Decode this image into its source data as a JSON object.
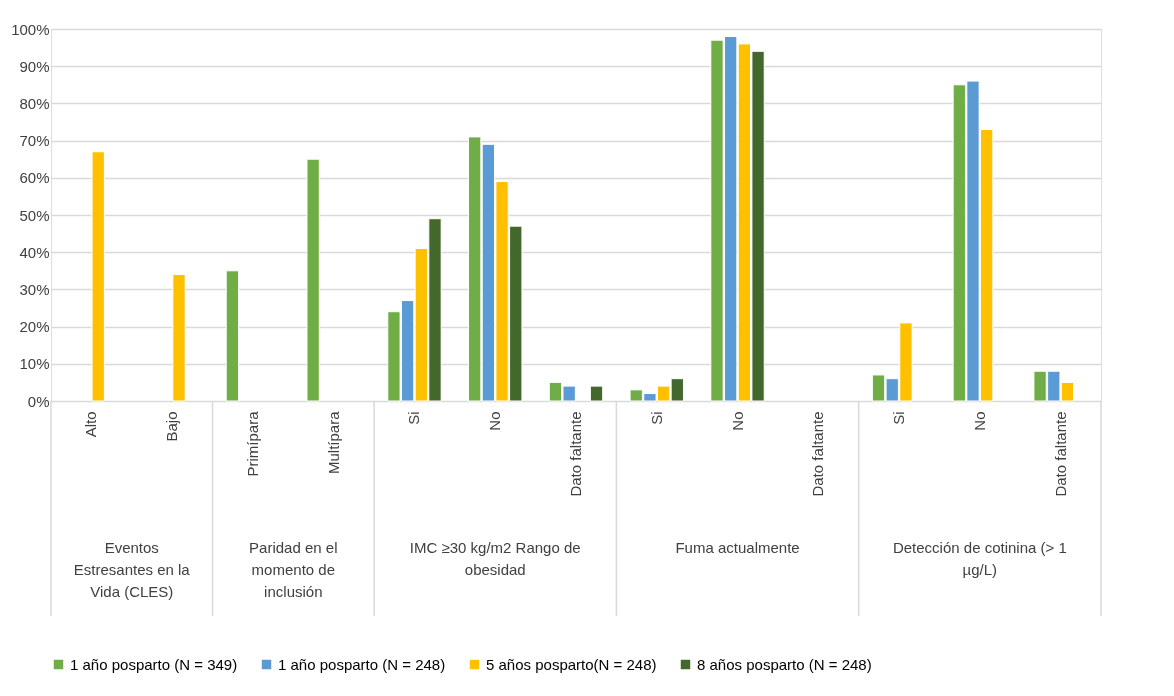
{
  "chart_data": {
    "type": "bar",
    "categories": [
      "Alto",
      "Bajo",
      "Primípara",
      "Multípara",
      "Si",
      "No",
      "Dato faltante",
      "Si",
      "No",
      "Dato faltante",
      "Si",
      "No",
      "Dato faltante"
    ],
    "series": [
      {
        "name": "1 año posparto (N = 349)",
        "color": "#70ad47",
        "values": [
          null,
          null,
          35,
          65,
          24,
          71,
          5,
          3,
          97,
          null,
          7,
          85,
          8
        ]
      },
      {
        "name": "1 año posparto (N = 248)",
        "color": "#5b9bd5",
        "values": [
          null,
          null,
          null,
          null,
          27,
          69,
          4,
          2,
          98,
          null,
          6,
          86,
          8
        ]
      },
      {
        "name": "5 años posparto(N = 248)",
        "color": "#ffc000",
        "values": [
          67,
          34,
          null,
          null,
          41,
          59,
          null,
          4,
          96,
          null,
          21,
          73,
          5
        ]
      },
      {
        "name": "8 años posparto (N = 248)",
        "color": "#43682b",
        "values": [
          null,
          null,
          null,
          null,
          49,
          47,
          4,
          6,
          94,
          null,
          null,
          null,
          null
        ]
      }
    ],
    "annotations": [
      "Eventos Estresantes en la Vida (CLES)",
      "Paridad en el momento de inclusión",
      "IMC ≥30 kg/m2 Rango de obesidad",
      "Fuma actualmente",
      "Detección de cotinina (> 1 µg/L)"
    ],
    "ylim": [
      0,
      100
    ],
    "yticks": [
      {
        "value": 0,
        "label": "0%"
      },
      {
        "value": 10,
        "label": "10%"
      },
      {
        "value": 20,
        "label": "20%"
      },
      {
        "value": 30,
        "label": "30%"
      },
      {
        "value": 40,
        "label": "40%"
      },
      {
        "value": 50,
        "label": "50%"
      },
      {
        "value": 60,
        "label": "60%"
      },
      {
        "value": 70,
        "label": "70%"
      },
      {
        "value": 80,
        "label": "80%"
      },
      {
        "value": 90,
        "label": "90%"
      },
      {
        "value": 100,
        "label": "100%"
      }
    ],
    "grid": "y",
    "legend": "bottom"
  }
}
